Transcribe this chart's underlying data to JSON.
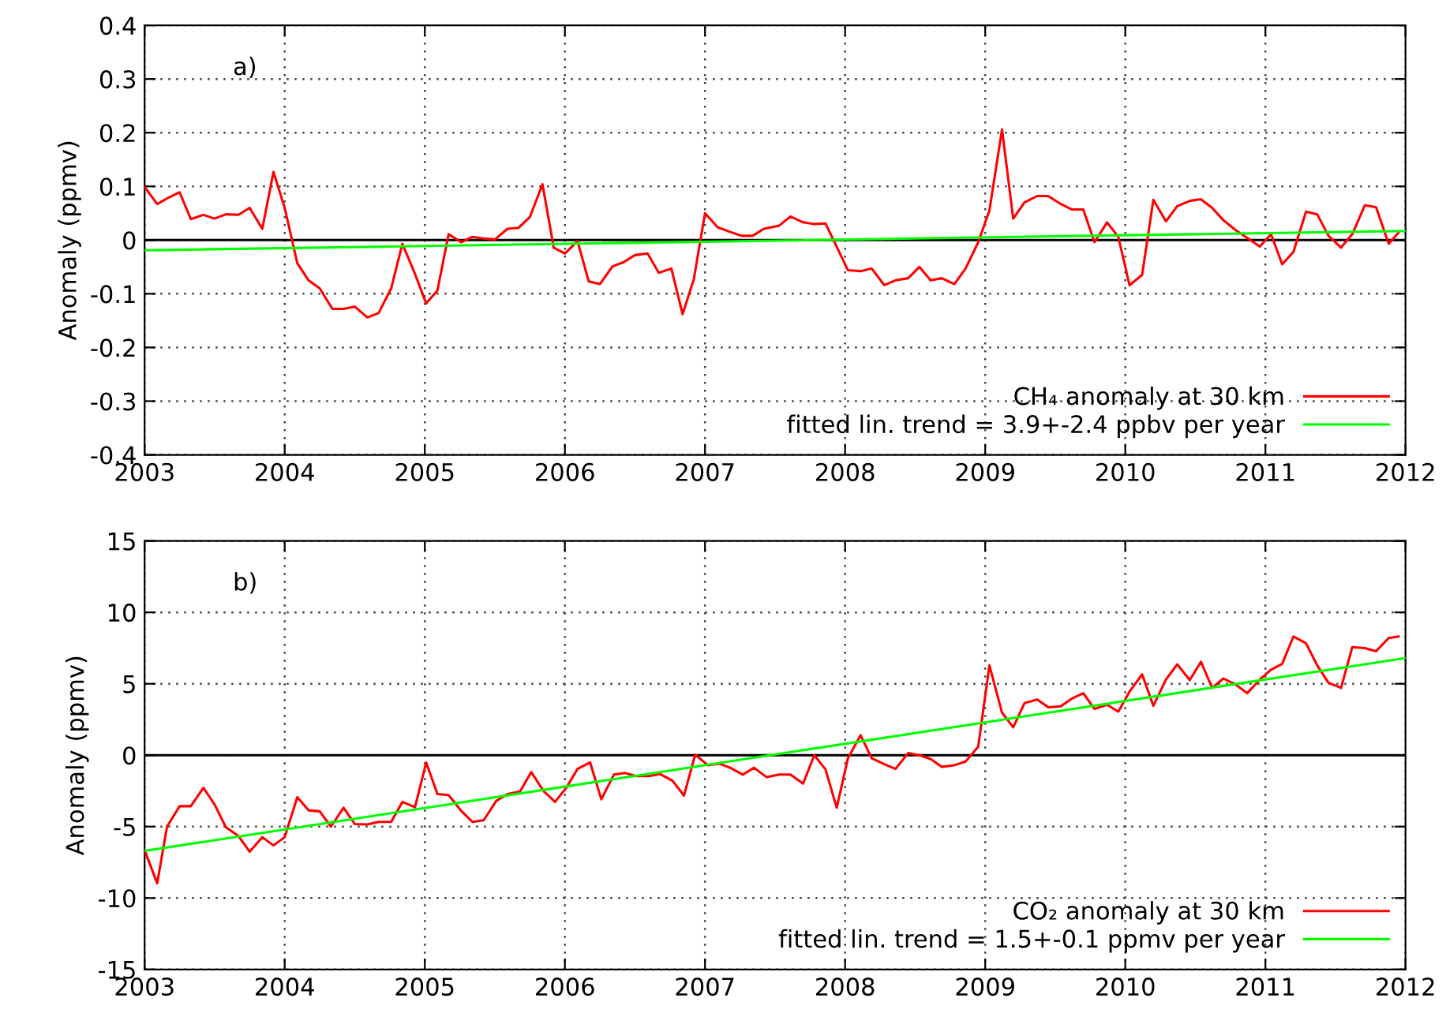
{
  "chart_data": [
    {
      "type": "line",
      "ylabel": "Anomaly (ppmv)",
      "xlim": [
        2003,
        2012
      ],
      "xticks": [
        2003,
        2004,
        2005,
        2006,
        2007,
        2008,
        2009,
        2010,
        2011,
        2012
      ],
      "ylim": [
        -0.4,
        0.4
      ],
      "yticks": [
        -0.4,
        -0.3,
        -0.2,
        -0.1,
        0,
        0.1,
        0.2,
        0.3,
        0.4
      ],
      "grid": true,
      "legend": "bottom right",
      "annotations": [
        "a)"
      ],
      "ref_lines": [
        {
          "axis": "y",
          "value": 0,
          "color": "#000000"
        }
      ],
      "series": [
        {
          "name": "CH₄ anomaly at 30 km",
          "color": "#ff0000",
          "x": [
            2003.0,
            2003.09,
            2003.17,
            2003.25,
            2003.33,
            2003.42,
            2003.5,
            2003.58,
            2003.67,
            2003.75,
            2003.84,
            2003.92,
            2004.0,
            2004.09,
            2004.17,
            2004.25,
            2004.34,
            2004.42,
            2004.5,
            2004.59,
            2004.67,
            2004.76,
            2004.84,
            2004.93,
            2005.01,
            2005.09,
            2005.17,
            2005.26,
            2005.34,
            2005.42,
            2005.5,
            2005.59,
            2005.67,
            2005.75,
            2005.84,
            2005.92,
            2006.0,
            2006.09,
            2006.17,
            2006.25,
            2006.34,
            2006.42,
            2006.5,
            2006.59,
            2006.67,
            2006.76,
            2006.84,
            2006.92,
            2007.0,
            2007.09,
            2007.17,
            2007.26,
            2007.34,
            2007.42,
            2007.53,
            2007.61,
            2007.7,
            2007.78,
            2007.86,
            2008.02,
            2008.11,
            2008.19,
            2008.28,
            2008.36,
            2008.45,
            2008.53,
            2008.61,
            2008.69,
            2008.78,
            2008.86,
            2008.95,
            2009.03,
            2009.12,
            2009.2,
            2009.28,
            2009.37,
            2009.45,
            2009.54,
            2009.62,
            2009.7,
            2009.78,
            2009.87,
            2009.95,
            2010.03,
            2010.12,
            2010.2,
            2010.29,
            2010.37,
            2010.46,
            2010.54,
            2010.62,
            2010.7,
            2010.79,
            2010.87,
            2010.96,
            2011.04,
            2011.12,
            2011.2,
            2011.29,
            2011.37,
            2011.45,
            2011.54,
            2011.62,
            2011.71,
            2011.79,
            2011.88,
            2011.95
          ],
          "values": [
            0.099,
            0.067,
            0.079,
            0.089,
            0.039,
            0.047,
            0.04,
            0.048,
            0.047,
            0.06,
            0.021,
            0.127,
            0.06,
            -0.043,
            -0.075,
            -0.09,
            -0.128,
            -0.128,
            -0.124,
            -0.144,
            -0.136,
            -0.09,
            -0.007,
            -0.063,
            -0.118,
            -0.094,
            0.011,
            -0.004,
            0.006,
            0.003,
            0.001,
            0.021,
            0.023,
            0.043,
            0.104,
            -0.014,
            -0.025,
            -0.002,
            -0.077,
            -0.082,
            -0.049,
            -0.041,
            -0.028,
            -0.025,
            -0.061,
            -0.053,
            -0.138,
            -0.073,
            0.05,
            0.024,
            0.016,
            0.008,
            0.008,
            0.021,
            0.027,
            0.044,
            0.033,
            0.03,
            0.031,
            -0.056,
            -0.058,
            -0.053,
            -0.084,
            -0.075,
            -0.071,
            -0.05,
            -0.075,
            -0.071,
            -0.082,
            -0.053,
            -0.004,
            0.055,
            0.206,
            0.04,
            0.07,
            0.082,
            0.082,
            0.067,
            0.057,
            0.057,
            -0.004,
            0.033,
            0.006,
            -0.084,
            -0.065,
            0.075,
            0.035,
            0.063,
            0.073,
            0.076,
            0.06,
            0.037,
            0.018,
            0.004,
            -0.012,
            0.011,
            -0.045,
            -0.022,
            0.053,
            0.048,
            0.008,
            -0.014,
            0.011,
            0.065,
            0.061,
            -0.007,
            0.014
          ]
        },
        {
          "name": "fitted lin. trend = 3.9+-2.4 ppbv per year",
          "color": "#00ff00",
          "x": [
            2003,
            2012
          ],
          "values": [
            -0.019,
            0.017
          ]
        }
      ]
    },
    {
      "type": "line",
      "ylabel": "Anomaly (ppmv)",
      "xlim": [
        2003,
        2012
      ],
      "xticks": [
        2003,
        2004,
        2005,
        2006,
        2007,
        2008,
        2009,
        2010,
        2011,
        2012
      ],
      "ylim": [
        -15,
        15
      ],
      "yticks": [
        -15,
        -10,
        -5,
        0,
        5,
        10,
        15
      ],
      "grid": true,
      "legend": "bottom right",
      "annotations": [
        "b)"
      ],
      "ref_lines": [
        {
          "axis": "y",
          "value": 0,
          "color": "#000000"
        }
      ],
      "series": [
        {
          "name": "CO₂ anomaly at 30 km",
          "color": "#ff0000",
          "x": [
            2003.0,
            2003.09,
            2003.16,
            2003.25,
            2003.33,
            2003.42,
            2003.5,
            2003.58,
            2003.67,
            2003.75,
            2003.84,
            2003.92,
            2004.0,
            2004.09,
            2004.17,
            2004.25,
            2004.33,
            2004.42,
            2004.5,
            2004.59,
            2004.67,
            2004.76,
            2004.84,
            2004.93,
            2005.01,
            2005.09,
            2005.17,
            2005.26,
            2005.34,
            2005.42,
            2005.51,
            2005.59,
            2005.68,
            2005.76,
            2005.85,
            2005.93,
            2006.01,
            2006.09,
            2006.18,
            2006.26,
            2006.35,
            2006.43,
            2006.51,
            2006.6,
            2006.68,
            2006.77,
            2006.85,
            2006.93,
            2007.02,
            2007.1,
            2007.18,
            2007.27,
            2007.35,
            2007.44,
            2007.53,
            2007.61,
            2007.7,
            2007.78,
            2007.86,
            2007.94,
            2008.02,
            2008.11,
            2008.19,
            2008.28,
            2008.36,
            2008.45,
            2008.53,
            2008.61,
            2008.69,
            2008.78,
            2008.86,
            2008.95,
            2009.03,
            2009.12,
            2009.2,
            2009.28,
            2009.37,
            2009.45,
            2009.54,
            2009.62,
            2009.7,
            2009.78,
            2009.87,
            2009.95,
            2010.03,
            2010.12,
            2010.2,
            2010.29,
            2010.37,
            2010.46,
            2010.54,
            2010.62,
            2010.7,
            2010.79,
            2010.87,
            2010.96,
            2011.04,
            2011.12,
            2011.2,
            2011.29,
            2011.37,
            2011.45,
            2011.54,
            2011.62,
            2011.71,
            2011.79,
            2011.88,
            2011.95
          ],
          "values": [
            -6.65,
            -8.97,
            -5.0,
            -3.57,
            -3.57,
            -2.28,
            -3.46,
            -5.04,
            -5.66,
            -6.76,
            -5.74,
            -6.32,
            -5.74,
            -2.94,
            -3.86,
            -3.93,
            -5.0,
            -3.68,
            -4.82,
            -4.85,
            -4.67,
            -4.67,
            -3.27,
            -3.64,
            -0.51,
            -2.72,
            -2.79,
            -3.9,
            -4.67,
            -4.56,
            -3.2,
            -2.72,
            -2.54,
            -1.18,
            -2.54,
            -3.27,
            -2.28,
            -0.96,
            -0.51,
            -3.09,
            -1.36,
            -1.25,
            -1.47,
            -1.47,
            -1.32,
            -1.8,
            -2.83,
            0.04,
            -0.7,
            -0.59,
            -0.88,
            -1.36,
            -0.88,
            -1.54,
            -1.36,
            -1.36,
            -1.99,
            0.0,
            -0.99,
            -3.68,
            -0.22,
            1.4,
            -0.22,
            -0.63,
            -0.96,
            0.15,
            0.0,
            -0.26,
            -0.81,
            -0.7,
            -0.44,
            0.59,
            6.29,
            2.98,
            1.95,
            3.64,
            3.9,
            3.35,
            3.42,
            3.97,
            4.34,
            3.24,
            3.53,
            3.05,
            4.45,
            5.66,
            3.46,
            5.29,
            6.36,
            5.26,
            6.54,
            4.71,
            5.37,
            4.93,
            4.34,
            5.29,
            5.99,
            6.4,
            8.31,
            7.83,
            6.29,
            5.07,
            4.71,
            7.57,
            7.5,
            7.28,
            8.2,
            8.31
          ]
        },
        {
          "name": "fitted lin. trend = 1.5+-0.1 ppmv per year",
          "color": "#00ff00",
          "x": [
            2003,
            2012
          ],
          "values": [
            -6.7,
            6.8
          ]
        }
      ]
    }
  ]
}
